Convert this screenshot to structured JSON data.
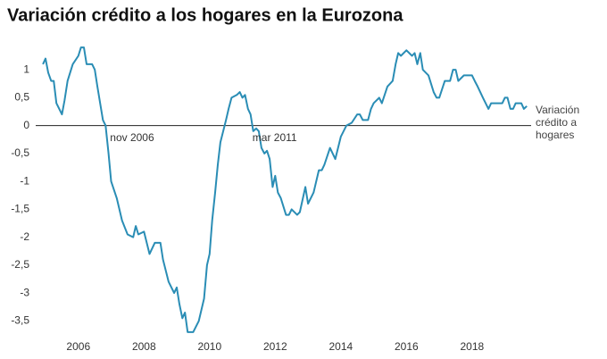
{
  "chart_data": {
    "type": "line",
    "title": "Variación crédito a los hogares en la Eurozona",
    "x": [
      2004.92,
      2005.0,
      2005.08,
      2005.17,
      2005.25,
      2005.33,
      2005.5,
      2005.58,
      2005.67,
      2005.83,
      2006.0,
      2006.08,
      2006.17,
      2006.25,
      2006.42,
      2006.5,
      2006.58,
      2006.75,
      2006.83,
      2006.92,
      2007.0,
      2007.17,
      2007.33,
      2007.5,
      2007.67,
      2007.75,
      2007.83,
      2008.0,
      2008.17,
      2008.33,
      2008.5,
      2008.58,
      2008.75,
      2008.92,
      2009.0,
      2009.08,
      2009.17,
      2009.25,
      2009.33,
      2009.5,
      2009.67,
      2009.83,
      2009.92,
      2010.0,
      2010.08,
      2010.17,
      2010.25,
      2010.33,
      2010.5,
      2010.58,
      2010.67,
      2010.83,
      2010.92,
      2011.0,
      2011.08,
      2011.17,
      2011.25,
      2011.33,
      2011.42,
      2011.5,
      2011.58,
      2011.67,
      2011.75,
      2011.83,
      2011.92,
      2012.0,
      2012.08,
      2012.17,
      2012.33,
      2012.42,
      2012.5,
      2012.67,
      2012.75,
      2012.92,
      2013.0,
      2013.17,
      2013.33,
      2013.42,
      2013.5,
      2013.67,
      2013.83,
      2014.0,
      2014.17,
      2014.33,
      2014.5,
      2014.58,
      2014.67,
      2014.83,
      2014.92,
      2015.0,
      2015.17,
      2015.25,
      2015.42,
      2015.58,
      2015.67,
      2015.75,
      2015.83,
      2016.0,
      2016.17,
      2016.25,
      2016.33,
      2016.42,
      2016.5,
      2016.67,
      2016.83,
      2016.92,
      2017.0,
      2017.17,
      2017.33,
      2017.42,
      2017.5,
      2017.58,
      2017.75,
      2017.83,
      2018.0,
      2018.08,
      2018.17,
      2018.33,
      2018.5,
      2018.58,
      2018.75,
      2018.92,
      2019.0,
      2019.08,
      2019.17,
      2019.25,
      2019.33,
      2019.5,
      2019.58,
      2019.67
    ],
    "series": [
      {
        "name": "Variación crédito a hogares",
        "color": "#2a8db5",
        "values": [
          1.1,
          1.2,
          0.95,
          0.8,
          0.8,
          0.4,
          0.2,
          0.45,
          0.8,
          1.1,
          1.25,
          1.4,
          1.4,
          1.1,
          1.1,
          1.0,
          0.7,
          0.1,
          0,
          -0.5,
          -1.0,
          -1.3,
          -1.7,
          -1.95,
          -2.0,
          -1.8,
          -1.95,
          -1.9,
          -2.3,
          -2.1,
          -2.1,
          -2.4,
          -2.8,
          -3.0,
          -2.9,
          -3.2,
          -3.45,
          -3.35,
          -3.7,
          -3.7,
          -3.5,
          -3.1,
          -2.5,
          -2.3,
          -1.7,
          -1.2,
          -0.7,
          -0.3,
          0.1,
          0.3,
          0.5,
          0.55,
          0.6,
          0.5,
          0.55,
          0.3,
          0.2,
          -0.1,
          -0.05,
          -0.1,
          -0.4,
          -0.5,
          -0.45,
          -0.6,
          -1.1,
          -0.9,
          -1.2,
          -1.3,
          -1.6,
          -1.6,
          -1.5,
          -1.6,
          -1.55,
          -1.1,
          -1.4,
          -1.2,
          -0.8,
          -0.8,
          -0.7,
          -0.4,
          -0.6,
          -0.2,
          0,
          0.05,
          0.2,
          0.2,
          0.1,
          0.1,
          0.3,
          0.4,
          0.5,
          0.4,
          0.7,
          0.8,
          1.1,
          1.3,
          1.25,
          1.35,
          1.25,
          1.3,
          1.1,
          1.3,
          1.0,
          0.9,
          0.6,
          0.5,
          0.5,
          0.8,
          0.8,
          1.0,
          1.0,
          0.8,
          0.9,
          0.9,
          0.9,
          0.8,
          0.7,
          0.5,
          0.3,
          0.4,
          0.4,
          0.4,
          0.5,
          0.5,
          0.3,
          0.3,
          0.4,
          0.4,
          0.3,
          0.35
        ]
      }
    ],
    "annotations": [
      {
        "text": "nov 2006",
        "x": 2006.83
      },
      {
        "text": "mar 2011",
        "x": 2011.17
      }
    ],
    "xlim": [
      2004.7,
      2019.8
    ],
    "xticks": [
      2006,
      2008,
      2010,
      2012,
      2014,
      2016,
      2018
    ],
    "ylim": [
      -3.75,
      1.45
    ],
    "yticks": [
      {
        "value": -3.5,
        "label": "-3,5"
      },
      -3,
      {
        "value": -2.5,
        "label": "-2,5"
      },
      -2,
      {
        "value": -1.5,
        "label": "-1,5"
      },
      -1,
      {
        "value": -0.5,
        "label": "-0,5"
      },
      0,
      {
        "value": 0.5,
        "label": "0,5"
      },
      1
    ],
    "zero_line": true
  }
}
